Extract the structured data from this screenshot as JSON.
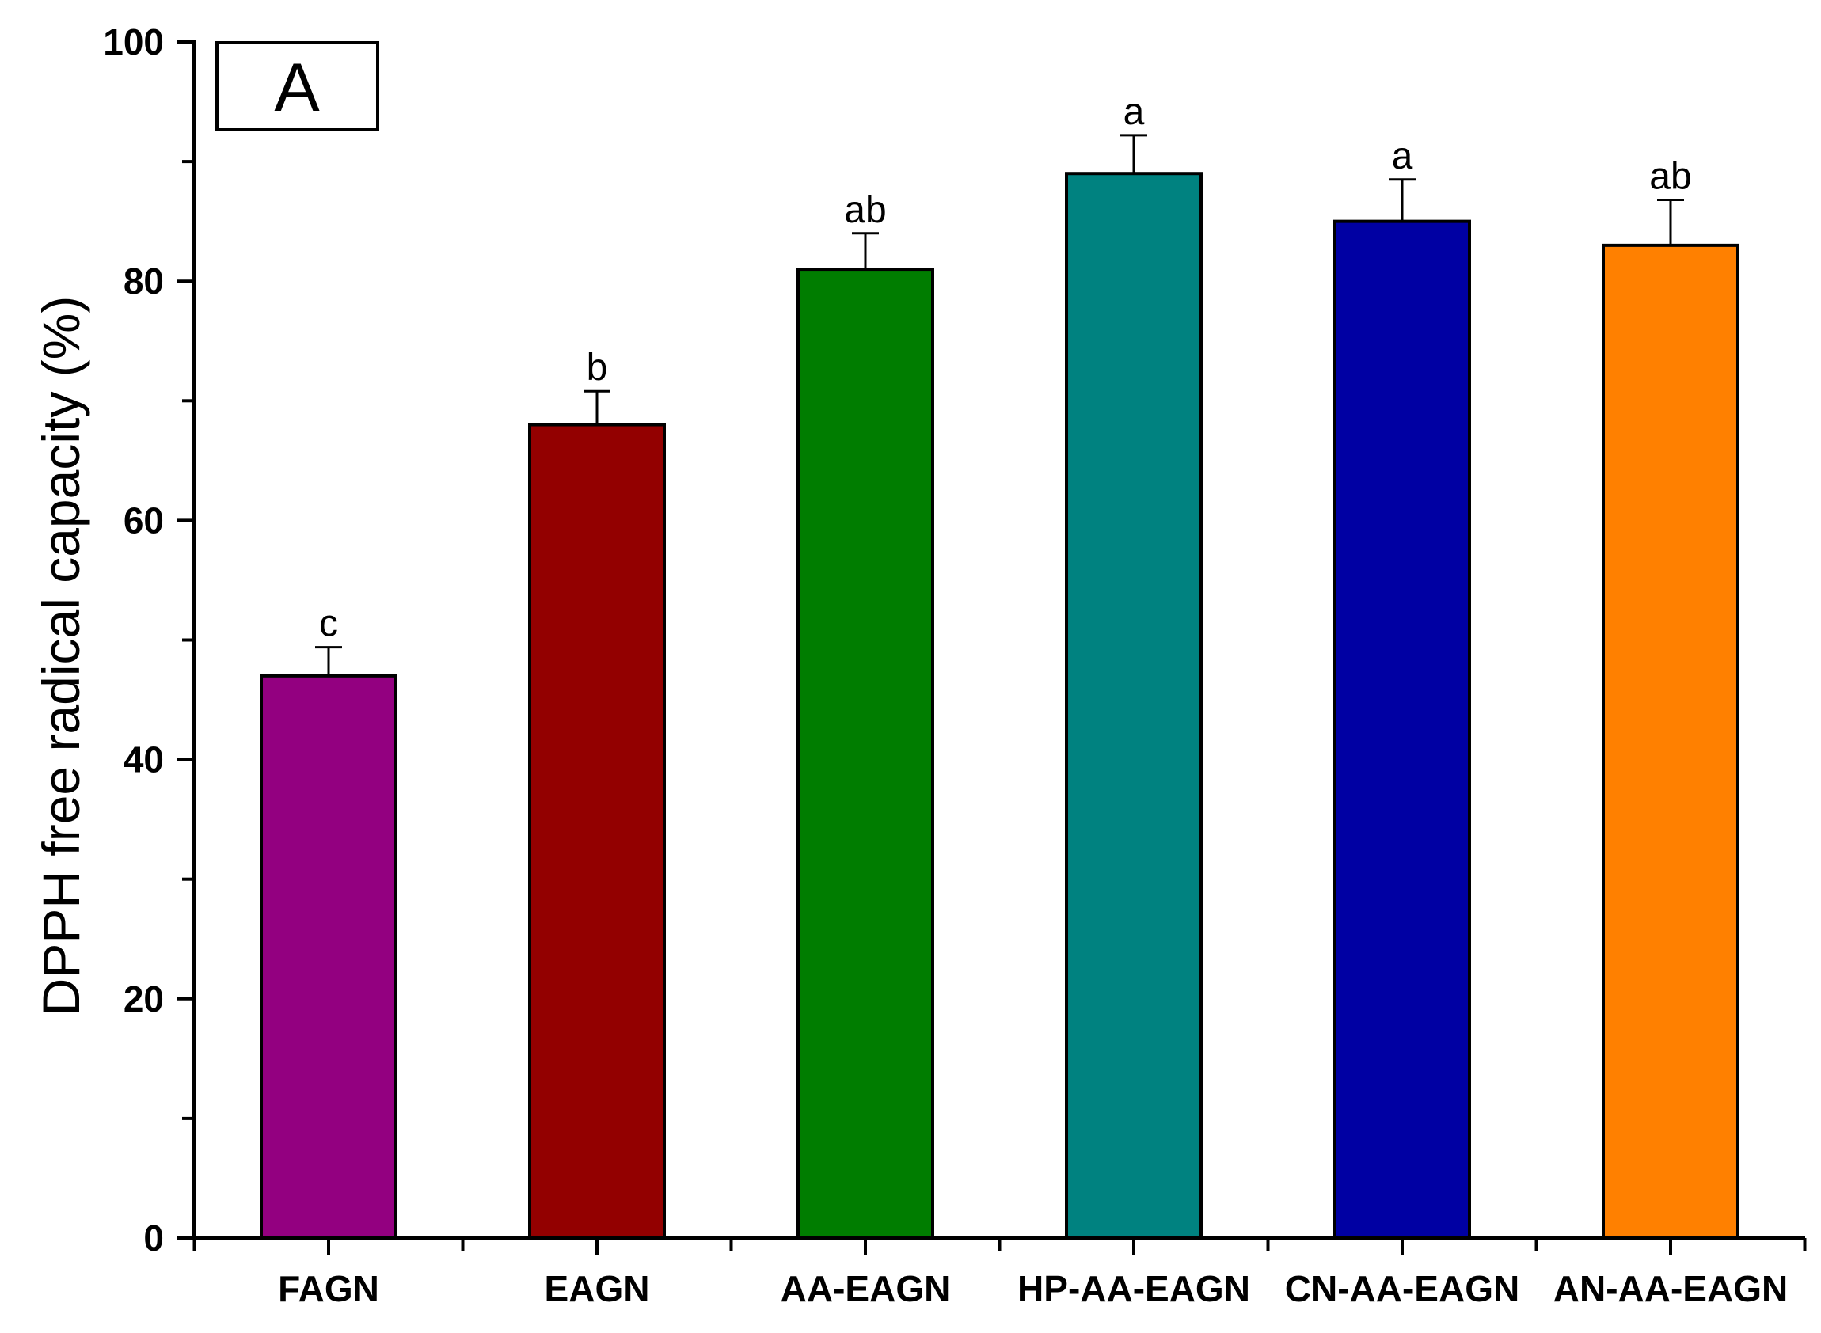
{
  "chart_data": {
    "type": "bar",
    "panel_label": "A",
    "title": "",
    "xlabel": "",
    "ylabel": "DPPH free radical capacity (%)",
    "ylim": [
      0,
      100
    ],
    "y_major_ticks": [
      0,
      20,
      40,
      60,
      80,
      100
    ],
    "y_minor_step": 10,
    "grid": false,
    "categories": [
      "FAGN",
      "EAGN",
      "AA-EAGN",
      "HP-AA-EAGN",
      "CN-AA-EAGN",
      "AN-AA-EAGN"
    ],
    "values": [
      47.0,
      68.0,
      81.0,
      89.0,
      85.0,
      83.0
    ],
    "errors": [
      2.4,
      2.8,
      3.0,
      3.2,
      3.5,
      3.8
    ],
    "significance": [
      "c",
      "b",
      "ab",
      "a",
      "a",
      "ab"
    ],
    "colors": [
      "#930080",
      "#930000",
      "#007D00",
      "#008280",
      "#0000A3",
      "#FF8000"
    ]
  }
}
